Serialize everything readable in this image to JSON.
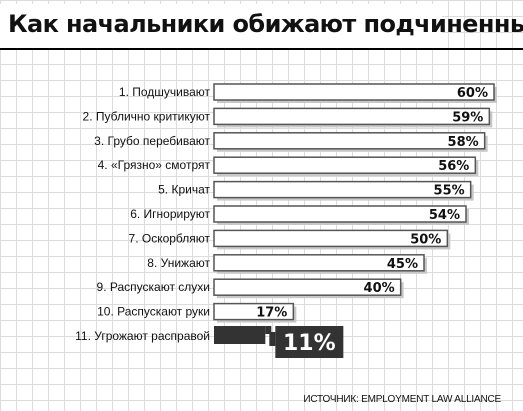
{
  "chart_data": {
    "type": "bar",
    "orientation": "horizontal",
    "title": "Как начальники обижают подчиненных",
    "categories": [
      "1. Подшучивают",
      "2. Публично критикуют",
      "3. Грубо перебивают",
      "4. «Грязно» смотрят",
      "5. Кричат",
      "6. Игнорируют",
      "7. Оскорбляют",
      "8. Унижают",
      "9. Распускают слухи",
      "10. Распускают руки",
      "11. Угрожают расправой"
    ],
    "values": [
      60,
      59,
      58,
      56,
      55,
      54,
      50,
      45,
      40,
      17,
      11
    ],
    "value_labels": [
      "60%",
      "59%",
      "58%",
      "56%",
      "55%",
      "54%",
      "50%",
      "45%",
      "40%",
      "17%",
      "11%"
    ],
    "unit": "%",
    "highlight_index": 10,
    "xlim": [
      0,
      60
    ],
    "grid": true,
    "colors": {
      "bar_fill": "#ffffff",
      "bar_stroke": "#555555",
      "bar_shadow": "#c8c8c8",
      "highlight": "#333333",
      "text": "#111111"
    }
  },
  "source": "ИСТОЧНИК: EMPLOYMENT LAW ALLIANCE"
}
